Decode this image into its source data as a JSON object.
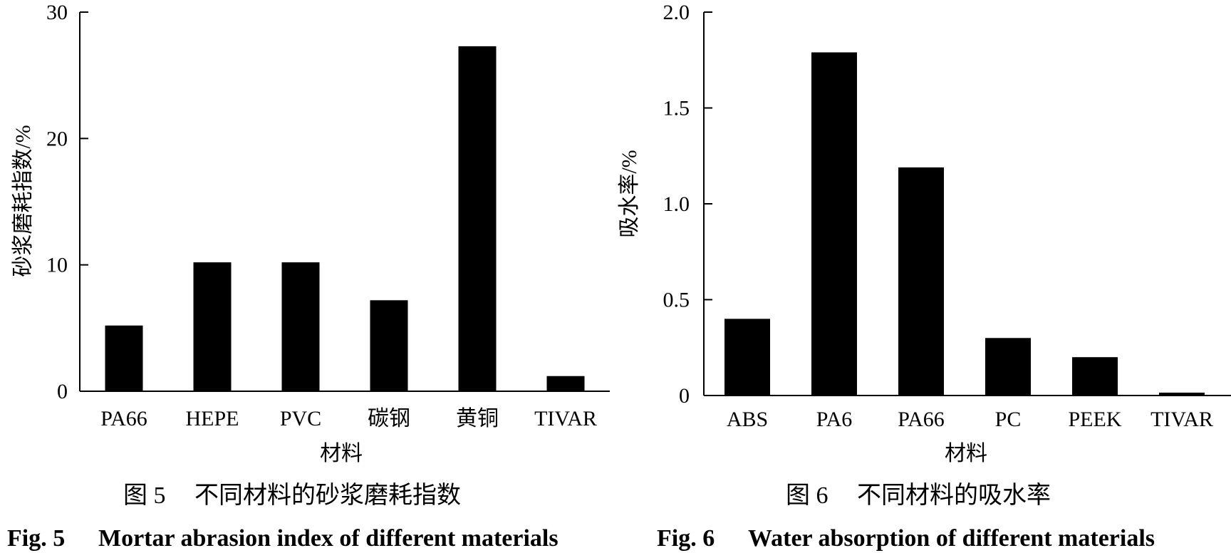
{
  "chart_data": [
    {
      "type": "bar",
      "title": "",
      "categories": [
        "PA66",
        "HEPE",
        "PVC",
        "碳钢",
        "黄铜",
        "TIVAR"
      ],
      "values": [
        5.2,
        10.2,
        10.2,
        7.2,
        27.3,
        1.2
      ],
      "xlabel": "材料",
      "ylabel": "砂浆磨耗指数/%",
      "ylim": [
        0,
        30
      ],
      "yticks": [
        "0",
        "10",
        "20",
        "30"
      ],
      "ytick_values": [
        0,
        10,
        20,
        30
      ],
      "grid": false,
      "bar_color": "#000000",
      "caption_cn": {
        "label": "图 5",
        "text": "不同材料的砂浆磨耗指数"
      },
      "caption_en": {
        "label": "Fig. 5",
        "text": "Mortar abrasion index of different materials"
      }
    },
    {
      "type": "bar",
      "title": "",
      "categories": [
        "ABS",
        "PA6",
        "PA66",
        "PC",
        "PEEK",
        "TIVAR"
      ],
      "values": [
        0.4,
        1.79,
        1.19,
        0.3,
        0.2,
        0.015
      ],
      "xlabel": "材料",
      "ylabel": "吸水率/%",
      "ylim": [
        0,
        2.0
      ],
      "yticks": [
        "0",
        "0.5",
        "1.0",
        "1.5",
        "2.0"
      ],
      "ytick_values": [
        0,
        0.5,
        1.0,
        1.5,
        2.0
      ],
      "grid": false,
      "bar_color": "#000000",
      "caption_cn": {
        "label": "图 6",
        "text": "不同材料的吸水率"
      },
      "caption_en": {
        "label": "Fig. 6",
        "text": "Water absorption of different materials"
      }
    }
  ]
}
